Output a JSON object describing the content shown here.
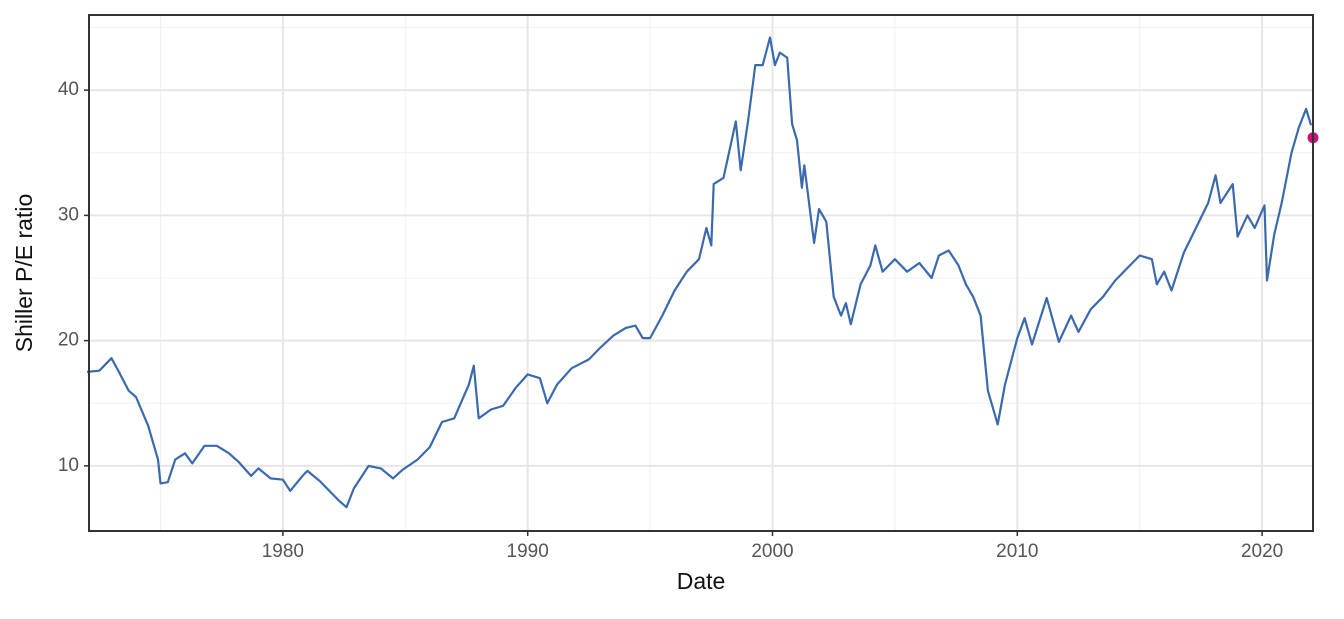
{
  "chart_data": {
    "type": "line",
    "xlabel": "Date",
    "ylabel": "Shiller P/E ratio",
    "xlim": [
      1972.08,
      2022.08
    ],
    "xticks": [
      1980,
      1990,
      2000,
      2010,
      2020
    ],
    "ylim": [
      4.8,
      46
    ],
    "yticks": [
      10,
      20,
      30,
      40
    ],
    "x_minor_grid": [
      1975,
      1985,
      1995,
      2005,
      2015
    ],
    "y_minor_grid": [
      15,
      25,
      35,
      45
    ],
    "grid": true,
    "series": [
      {
        "color": "#3a6aad",
        "x": [
          1972.0,
          1972.5,
          1973.0,
          1973.3,
          1973.7,
          1974.0,
          1974.5,
          1974.9,
          1975.0,
          1975.3,
          1975.6,
          1976.0,
          1976.3,
          1976.8,
          1977.3,
          1977.8,
          1978.2,
          1978.7,
          1979.0,
          1979.5,
          1980.0,
          1980.3,
          1980.8,
          1981.0,
          1981.5,
          1982.0,
          1982.3,
          1982.6,
          1982.9,
          1983.5,
          1984.0,
          1984.5,
          1984.9,
          1985.5,
          1986.0,
          1986.5,
          1987.0,
          1987.6,
          1987.8,
          1988.0,
          1988.5,
          1989.0,
          1989.5,
          1990.0,
          1990.5,
          1990.8,
          1991.2,
          1991.8,
          1992.5,
          1993.0,
          1993.5,
          1994.0,
          1994.4,
          1994.7,
          1995.0,
          1995.5,
          1996.0,
          1996.5,
          1997.0,
          1997.3,
          1997.5,
          1997.6,
          1998.0,
          1998.5,
          1998.7,
          1999.0,
          1999.3,
          1999.6,
          1999.9,
          2000.1,
          2000.3,
          2000.6,
          2000.8,
          2001.0,
          2001.2,
          2001.3,
          2001.7,
          2001.9,
          2002.2,
          2002.5,
          2002.8,
          2003.0,
          2003.2,
          2003.6,
          2004.0,
          2004.2,
          2004.5,
          2005.0,
          2005.5,
          2006.0,
          2006.5,
          2006.8,
          2007.2,
          2007.6,
          2007.9,
          2008.2,
          2008.5,
          2008.8,
          2009.2,
          2009.5,
          2010.0,
          2010.3,
          2010.6,
          2011.2,
          2011.7,
          2012.2,
          2012.5,
          2013.0,
          2013.5,
          2014.0,
          2014.5,
          2015.0,
          2015.5,
          2015.7,
          2016.0,
          2016.3,
          2016.8,
          2017.3,
          2017.8,
          2018.1,
          2018.3,
          2018.8,
          2019.0,
          2019.4,
          2019.7,
          2020.1,
          2020.2,
          2020.5,
          2020.8,
          2021.2,
          2021.5,
          2021.8,
          2022.0
        ],
        "values": [
          17.5,
          17.6,
          18.6,
          17.5,
          16.0,
          15.5,
          13.2,
          10.5,
          8.6,
          8.7,
          10.5,
          11.0,
          10.2,
          11.6,
          11.6,
          11.0,
          10.3,
          9.2,
          9.8,
          9.0,
          8.9,
          8.0,
          9.2,
          9.6,
          8.8,
          7.8,
          7.2,
          6.7,
          8.2,
          10.0,
          9.8,
          9.0,
          9.7,
          10.5,
          11.5,
          13.5,
          13.8,
          16.5,
          18.0,
          13.8,
          14.5,
          14.8,
          16.2,
          17.3,
          17.0,
          15.0,
          16.5,
          17.8,
          18.5,
          19.5,
          20.4,
          21.0,
          21.2,
          20.2,
          20.2,
          22.0,
          24.0,
          25.5,
          26.5,
          29.0,
          27.6,
          32.5,
          33.0,
          37.5,
          33.6,
          37.5,
          42.0,
          42.0,
          44.2,
          42.0,
          43.0,
          42.6,
          37.3,
          36.0,
          32.2,
          34.0,
          27.8,
          30.5,
          29.5,
          23.5,
          22.0,
          23.0,
          21.3,
          24.5,
          26.0,
          27.6,
          25.5,
          26.5,
          25.5,
          26.2,
          25.0,
          26.8,
          27.2,
          26.0,
          24.5,
          23.5,
          22.0,
          16.0,
          13.3,
          16.5,
          20.2,
          21.8,
          19.7,
          23.4,
          19.9,
          22.0,
          20.7,
          22.5,
          23.5,
          24.8,
          25.8,
          26.8,
          26.5,
          24.5,
          25.5,
          24.0,
          27.0,
          29.0,
          31.0,
          33.2,
          31.0,
          32.5,
          28.3,
          30.0,
          29.0,
          30.8,
          24.8,
          28.5,
          31.0,
          35.0,
          37.0,
          38.5,
          37.2
        ]
      }
    ],
    "highlight": {
      "x": 2022.08,
      "y": 36.2,
      "color": "#c8127a"
    }
  }
}
